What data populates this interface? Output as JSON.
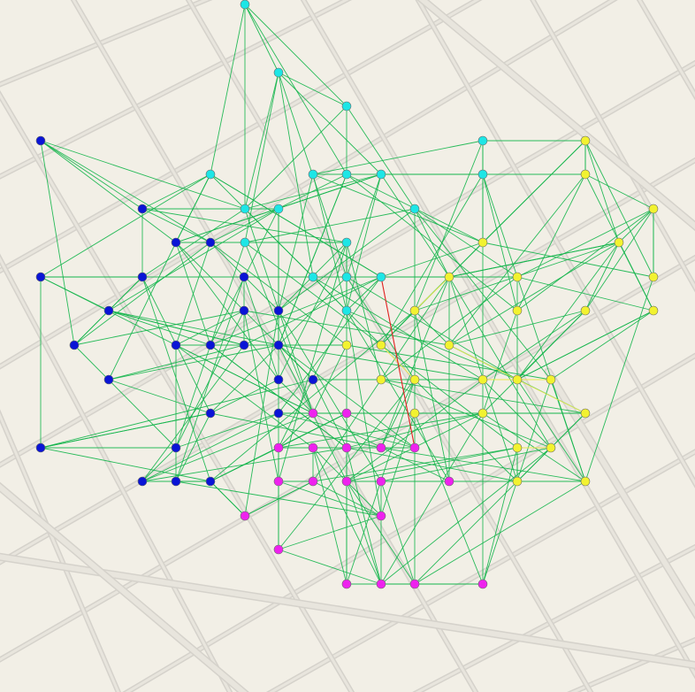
{
  "colors": {
    "background": "#f2efe6",
    "street_casing": "#d5d2cb",
    "street_fill": "#e8e5dd",
    "edge_inter": "#12b54a",
    "edge_intra_yellow": "#e8e850",
    "edge_highlight": "#e02020",
    "community_blue": "#0a14d6",
    "community_cyan": "#1de6e6",
    "community_magenta": "#ee22ee",
    "community_yellow": "#f2f230",
    "node_outline": "#6a6a6a"
  },
  "map": {
    "street_network": "grid",
    "labels": "none"
  },
  "graph": {
    "type": "community network overlay",
    "communities": [
      "blue",
      "cyan",
      "magenta",
      "yellow"
    ],
    "node_count": 108,
    "edge_style": "thin straight lines",
    "highlighted_edges": 1
  }
}
